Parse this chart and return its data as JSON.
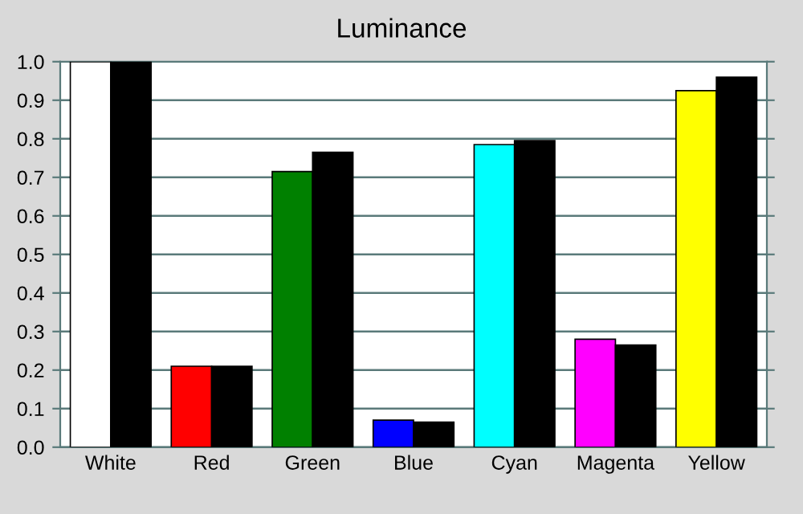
{
  "chart_data": {
    "type": "bar",
    "title": "Luminance",
    "categories": [
      "White",
      "Red",
      "Green",
      "Blue",
      "Cyan",
      "Magenta",
      "Yellow"
    ],
    "series": [
      {
        "colors": [
          "#ffffff",
          "#ff0000",
          "#008000",
          "#0000ff",
          "#00ffff",
          "#ff00ff",
          "#ffff00"
        ],
        "values": [
          1.0,
          0.21,
          0.715,
          0.07,
          0.785,
          0.28,
          0.925
        ]
      },
      {
        "color": "#000000",
        "values": [
          1.0,
          0.21,
          0.765,
          0.065,
          0.795,
          0.265,
          0.96
        ]
      }
    ],
    "ylim": [
      0,
      1.0
    ],
    "yticks": [
      {
        "value": 0,
        "label": "0.0"
      },
      {
        "value": 0.1,
        "label": "0.1"
      },
      {
        "value": 0.2,
        "label": "0.2"
      },
      {
        "value": 0.3,
        "label": "0.3"
      },
      {
        "value": 0.4,
        "label": "0.4"
      },
      {
        "value": 0.5,
        "label": "0.5"
      },
      {
        "value": 0.6,
        "label": "0.6"
      },
      {
        "value": 0.7,
        "label": "0.7"
      },
      {
        "value": 0.8,
        "label": "0.8"
      },
      {
        "value": 0.9,
        "label": "0.9"
      },
      {
        "value": 1.0,
        "label": "1.0"
      }
    ],
    "grid": "y",
    "legend": false
  }
}
